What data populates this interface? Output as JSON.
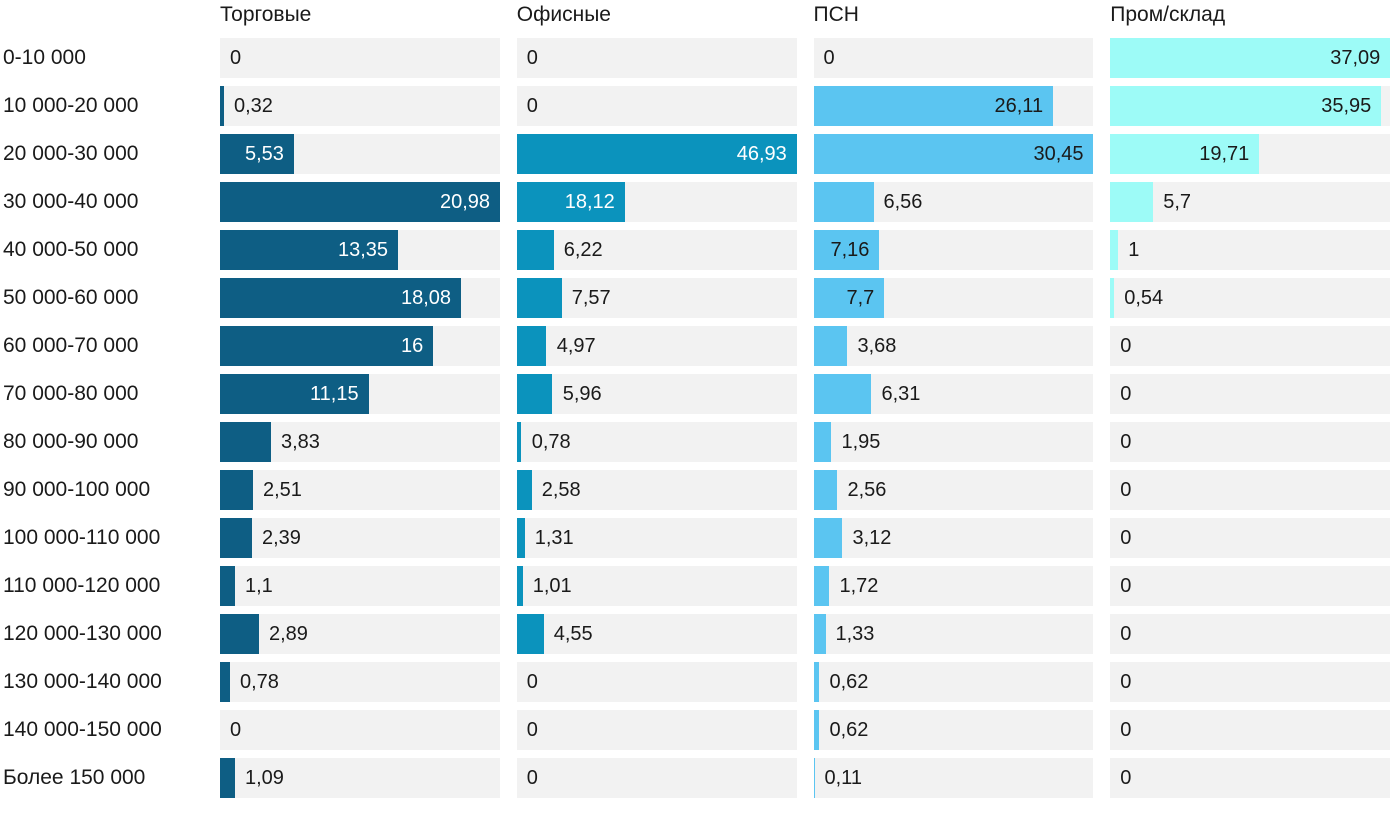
{
  "chart_data": {
    "type": "bar",
    "orientation": "horizontal",
    "title": "",
    "categories": [
      "0-10 000",
      "10 000-20 000",
      "20 000-30 000",
      "30 000-40 000",
      "40 000-50 000",
      "50 000-60 000",
      "60 000-70 000",
      "70 000-80 000",
      "80 000-90 000",
      "90 000-100 000",
      "100 000-110 000",
      "110 000-120 000",
      "120 000-130 000",
      "130 000-140 000",
      "140 000-150 000",
      "Более 150 000"
    ],
    "series": [
      {
        "name": "Торговые",
        "color": "#0e5e84",
        "label_inside_color": "#ffffff",
        "values": [
          0,
          0.32,
          5.53,
          20.98,
          13.35,
          18.08,
          16,
          11.15,
          3.83,
          2.51,
          2.39,
          1.1,
          2.89,
          0.78,
          0,
          1.09
        ]
      },
      {
        "name": "Офисные",
        "color": "#0b93bd",
        "label_inside_color": "#ffffff",
        "values": [
          0,
          0,
          46.93,
          18.12,
          6.22,
          7.57,
          4.97,
          5.96,
          0.78,
          2.58,
          1.31,
          1.01,
          4.55,
          0,
          0,
          0
        ]
      },
      {
        "name": "ПСН",
        "color": "#5bc5f1",
        "label_inside_color": "#1a1a1a",
        "values": [
          0,
          26.11,
          30.45,
          6.56,
          7.16,
          7.7,
          3.68,
          6.31,
          1.95,
          2.56,
          3.12,
          1.72,
          1.33,
          0.62,
          0.62,
          0.11
        ]
      },
      {
        "name": "Пром/склад",
        "color": "#9dfbf7",
        "label_inside_color": "#1a1a1a",
        "values": [
          37.09,
          35.95,
          19.71,
          5.7,
          1,
          0.54,
          0,
          0,
          0,
          0,
          0,
          0,
          0,
          0,
          0,
          0
        ]
      }
    ],
    "column_max": [
      20.98,
      46.93,
      30.45,
      37.09
    ],
    "scaling": "each column scaled independently to its own max value",
    "track_color": "#f2f2f2",
    "text_color": "#1a1a1a",
    "decimal_separator": ",",
    "grid": false,
    "legend_position": "column-headers-top"
  }
}
